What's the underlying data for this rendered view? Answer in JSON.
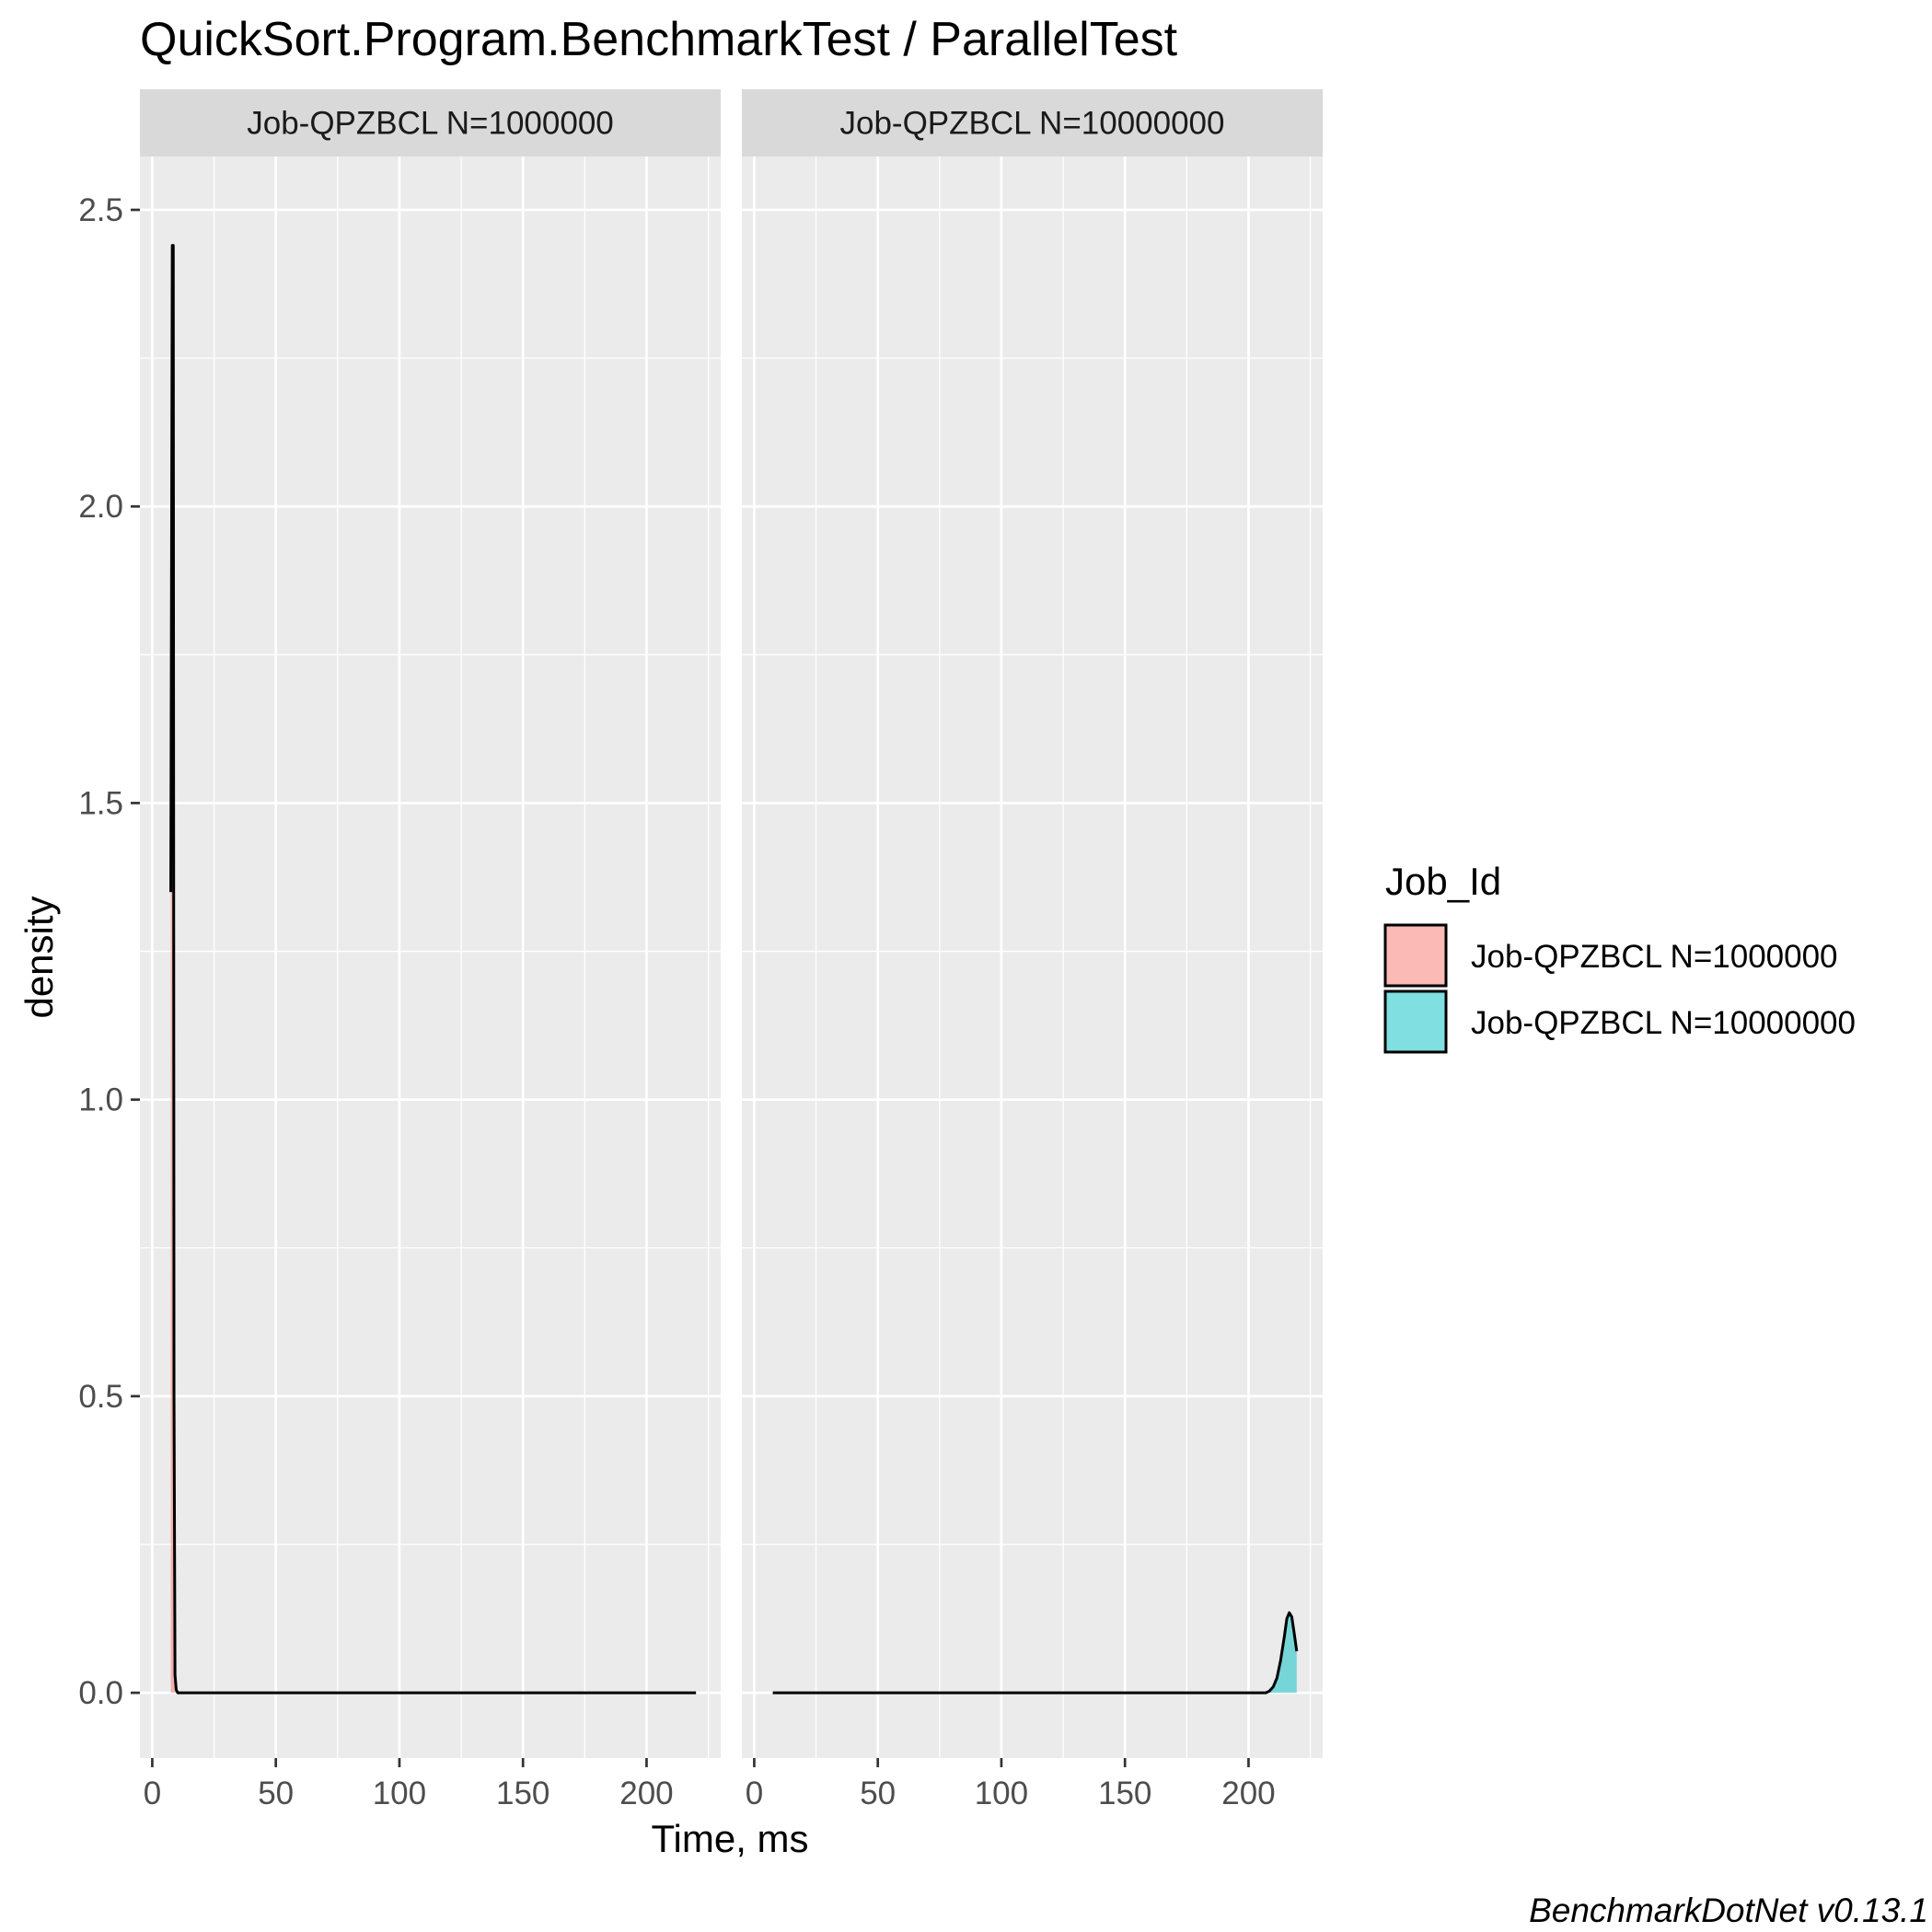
{
  "chart_data": {
    "type": "area",
    "subtype": "density",
    "title": "QuickSort.Program.BenchmarkTest / ParallelTest",
    "xlabel": "Time, ms",
    "ylabel": "density",
    "caption": "BenchmarkDotNet v0.13.1",
    "xlim": [
      -5,
      230
    ],
    "ylim": [
      -0.11,
      2.59
    ],
    "x_ticks": [
      0,
      50,
      100,
      150,
      200
    ],
    "x_tick_labels": [
      "0",
      "50",
      "100",
      "150",
      "200"
    ],
    "y_ticks": [
      0,
      0.5,
      1,
      1.5,
      2,
      2.5
    ],
    "y_tick_labels": [
      "0.0",
      "0.5",
      "1.0",
      "1.5",
      "2.0",
      "2.5"
    ],
    "grid": true,
    "legend": {
      "title": "Job_Id",
      "position": "right",
      "entries": [
        "Job-QPZBCL N=1000000",
        "Job-QPZBCL N=10000000"
      ]
    },
    "colors": {
      "series1": "#F8766D",
      "series2": "#00BFC4",
      "panel_bg": "#EBEBEB",
      "strip_bg": "#D9D9D9",
      "grid": "#FFFFFF"
    },
    "panels": [
      {
        "strip": "Job-QPZBCL N=1000000",
        "series": [
          {
            "name": "Job-QPZBCL N=1000000",
            "fill_x": [
              7.5,
              8.1,
              8.5,
              8.8,
              9.2,
              9.7,
              10.3
            ],
            "fill_y": [
              1.35,
              2.44,
              2.44,
              0.5,
              0.03,
              0.005,
              0
            ],
            "line_x": [
              7.5,
              8.1,
              8.5,
              8.8,
              9.2,
              9.7,
              10.3,
              50,
              100,
              150,
              200,
              220
            ],
            "line_y": [
              1.35,
              2.44,
              2.44,
              0.5,
              0.03,
              0.005,
              0,
              0,
              0,
              0,
              0,
              0
            ]
          }
        ]
      },
      {
        "strip": "Job-QPZBCL N=10000000",
        "series": [
          {
            "name": "Job-QPZBCL N=10000000",
            "fill_x": [
              207,
              208.5,
              210,
              211.5,
              213,
              214.5,
              215.5,
              216.5,
              217.5,
              218.5,
              219.5
            ],
            "fill_y": [
              0,
              0.003,
              0.01,
              0.025,
              0.055,
              0.095,
              0.125,
              0.135,
              0.128,
              0.1,
              0.07
            ],
            "line_x": [
              7.5,
              50,
              100,
              150,
              200,
              207,
              208.5,
              210,
              211.5,
              213,
              214.5,
              215.5,
              216.5,
              217.5,
              218.5,
              219.5
            ],
            "line_y": [
              0,
              0,
              0,
              0,
              0,
              0,
              0.003,
              0.01,
              0.025,
              0.055,
              0.095,
              0.125,
              0.135,
              0.128,
              0.1,
              0.07
            ]
          }
        ]
      }
    ]
  }
}
